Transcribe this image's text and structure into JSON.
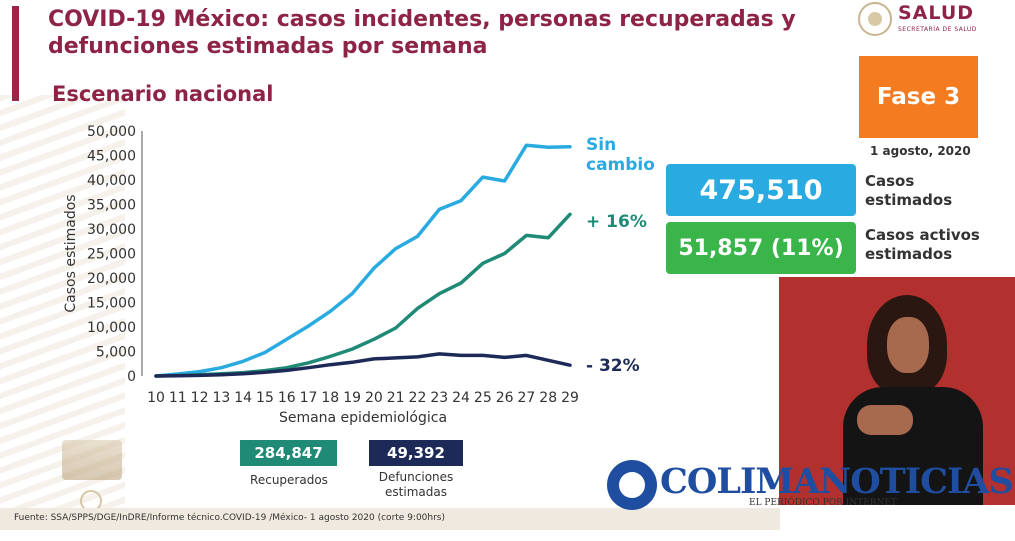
{
  "header": {
    "title": "COVID-19 México: casos incidentes, personas recuperadas y defunciones estimadas por semana",
    "subtitle": "Escenario nacional",
    "logo_name": "SALUD",
    "logo_sub": "SECRETARÍA DE SALUD"
  },
  "fase": {
    "label": "Fase 3",
    "date": "1 agosto, 2020"
  },
  "stats": {
    "casos_value": "475,510",
    "casos_label": "Casos estimados",
    "activos_value": "51,857 (11%)",
    "activos_label": "Casos activos estimados"
  },
  "bottom": {
    "recuperados_value": "284,847",
    "recuperados_label": "Recuperados",
    "defunciones_value": "49,392",
    "defunciones_label": "Defunciones estimadas"
  },
  "footer": {
    "source": "Fuente: SSA/SPPS/DGE/InDRE/Informe técnico.COVID-19 /México- 1 agosto 2020 (corte 9:00hrs)"
  },
  "watermark": {
    "brand": "COLIMANOTICIAS",
    "tagline": "EL PERIÓDICO POR INTERNET"
  },
  "chart_data": {
    "type": "line",
    "xlabel": "Semana epidemiológica",
    "ylabel": "Casos estimados",
    "x": [
      10,
      11,
      12,
      13,
      14,
      15,
      16,
      17,
      18,
      19,
      20,
      21,
      22,
      23,
      24,
      25,
      26,
      27,
      28,
      29
    ],
    "ylim": [
      0,
      50000
    ],
    "yticks": [
      "0",
      "5,000",
      "10,000",
      "15,000",
      "20,000",
      "25,000",
      "30,000",
      "35,000",
      "40,000",
      "45,000",
      "50,000"
    ],
    "grid": false,
    "series": [
      {
        "name": "Sin cambio",
        "color": "#29abe2",
        "values": [
          0,
          400,
          900,
          1700,
          3000,
          4800,
          7500,
          10200,
          13200,
          16800,
          22000,
          26000,
          28500,
          34000,
          35800,
          40600,
          39800,
          47100,
          46700,
          46800
        ]
      },
      {
        "name": "+ 16%",
        "color": "#1f8a76",
        "values": [
          0,
          100,
          250,
          450,
          700,
          1100,
          1700,
          2700,
          4000,
          5500,
          7500,
          9800,
          13800,
          16800,
          19000,
          23000,
          25000,
          28700,
          28200,
          33000
        ]
      },
      {
        "name": "- 32%",
        "color": "#1d2a57",
        "values": [
          0,
          60,
          130,
          260,
          460,
          760,
          1150,
          1700,
          2300,
          2800,
          3500,
          3700,
          3900,
          4500,
          4200,
          4200,
          3800,
          4200,
          3200,
          2200
        ]
      }
    ]
  }
}
